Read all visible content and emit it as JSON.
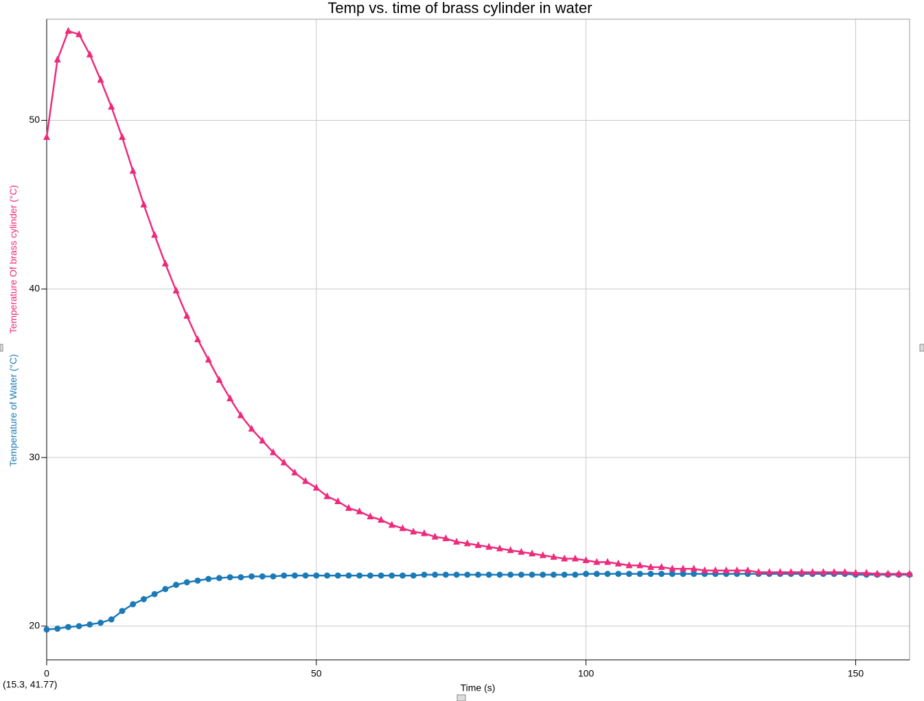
{
  "chart_data": {
    "type": "line",
    "title": "Temp vs. time of brass cylinder in water",
    "xlabel": "Time (s)",
    "cursor_readout": "(15.3, 41.77)",
    "xlim": [
      0,
      160
    ],
    "xticks": [
      0,
      50,
      100,
      150
    ],
    "ylim": [
      18,
      56
    ],
    "yticks": [
      20,
      30,
      40,
      50
    ],
    "grid": true,
    "x": [
      0,
      2,
      4,
      6,
      8,
      10,
      12,
      14,
      16,
      18,
      20,
      22,
      24,
      26,
      28,
      30,
      32,
      34,
      36,
      38,
      40,
      42,
      44,
      46,
      48,
      50,
      52,
      54,
      56,
      58,
      60,
      62,
      64,
      66,
      68,
      70,
      72,
      74,
      76,
      78,
      80,
      82,
      84,
      86,
      88,
      90,
      92,
      94,
      96,
      98,
      100,
      102,
      104,
      106,
      108,
      110,
      112,
      114,
      116,
      118,
      120,
      122,
      124,
      126,
      128,
      130,
      132,
      134,
      136,
      138,
      140,
      142,
      144,
      146,
      148,
      150,
      152,
      154,
      156,
      158,
      160
    ],
    "series": [
      {
        "name": "Temperature Of brass cylinder (°C)",
        "color": "#ee2a7b",
        "marker": "triangle",
        "values": [
          49.0,
          53.6,
          55.3,
          55.1,
          53.9,
          52.4,
          50.8,
          49.0,
          47.0,
          45.0,
          43.2,
          41.5,
          39.9,
          38.4,
          37.0,
          35.8,
          34.6,
          33.5,
          32.5,
          31.7,
          31.0,
          30.3,
          29.7,
          29.1,
          28.6,
          28.2,
          27.7,
          27.4,
          27.0,
          26.8,
          26.5,
          26.3,
          26.0,
          25.8,
          25.6,
          25.5,
          25.3,
          25.2,
          25.0,
          24.9,
          24.8,
          24.7,
          24.6,
          24.5,
          24.4,
          24.3,
          24.2,
          24.1,
          24.0,
          24.0,
          23.9,
          23.8,
          23.8,
          23.7,
          23.6,
          23.6,
          23.5,
          23.5,
          23.4,
          23.4,
          23.4,
          23.3,
          23.3,
          23.3,
          23.3,
          23.3,
          23.2,
          23.2,
          23.2,
          23.2,
          23.2,
          23.2,
          23.2,
          23.2,
          23.2,
          23.15,
          23.15,
          23.1,
          23.1,
          23.1,
          23.1
        ]
      },
      {
        "name": "Temperature of Water (°C)",
        "color": "#1a7ab8",
        "marker": "circle",
        "values": [
          19.8,
          19.85,
          19.95,
          20.0,
          20.1,
          20.2,
          20.4,
          20.9,
          21.3,
          21.6,
          21.9,
          22.2,
          22.45,
          22.6,
          22.7,
          22.8,
          22.85,
          22.9,
          22.9,
          22.95,
          22.95,
          22.95,
          23.0,
          23.0,
          23.0,
          23.0,
          23.0,
          23.0,
          23.0,
          23.0,
          23.0,
          23.0,
          23.0,
          23.0,
          23.0,
          23.05,
          23.05,
          23.05,
          23.05,
          23.05,
          23.05,
          23.05,
          23.05,
          23.05,
          23.05,
          23.05,
          23.05,
          23.05,
          23.05,
          23.05,
          23.1,
          23.1,
          23.1,
          23.1,
          23.1,
          23.1,
          23.1,
          23.1,
          23.1,
          23.1,
          23.1,
          23.1,
          23.1,
          23.1,
          23.1,
          23.1,
          23.1,
          23.1,
          23.1,
          23.1,
          23.1,
          23.1,
          23.1,
          23.1,
          23.1,
          23.05,
          23.05,
          23.05,
          23.05,
          23.05,
          23.05
        ]
      }
    ]
  }
}
